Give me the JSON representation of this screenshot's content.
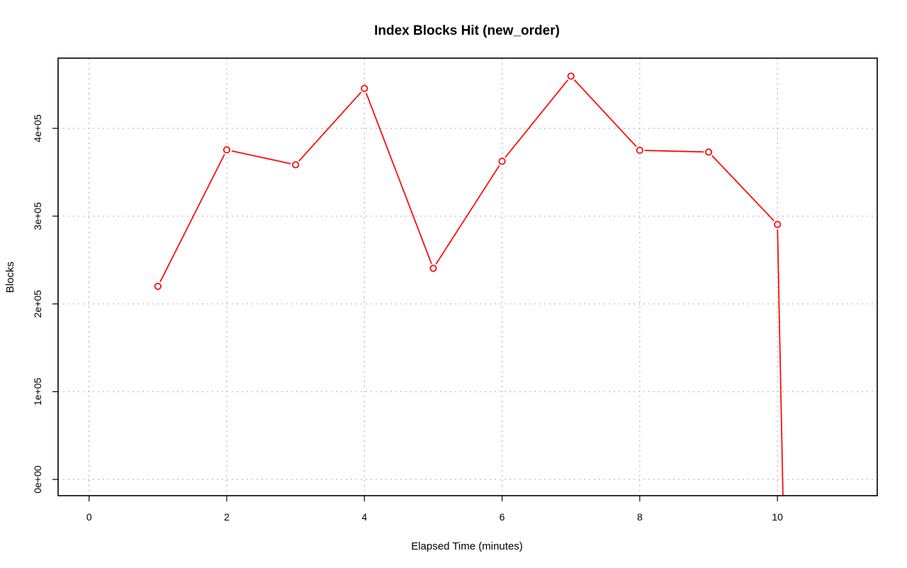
{
  "chart_data": {
    "type": "line",
    "title": "Index Blocks Hit (new_order)",
    "xlabel": "Elapsed Time (minutes)",
    "ylabel": "Blocks",
    "xlim": [
      -0.45,
      11.45
    ],
    "ylim": [
      -18500,
      480000
    ],
    "grid": true,
    "x_ticks": [
      0,
      2,
      4,
      6,
      8,
      10
    ],
    "x_tick_labels": [
      "0",
      "2",
      "4",
      "6",
      "8",
      "10"
    ],
    "y_ticks": [
      0,
      100000,
      200000,
      300000,
      400000
    ],
    "y_tick_labels": [
      "0e+00",
      "1e+05",
      "2e+05",
      "3e+05",
      "4e+05"
    ],
    "series": [
      {
        "color": "#ff0000",
        "marker": "open-circle",
        "x": [
          1,
          2,
          3,
          4,
          5,
          6,
          7,
          8,
          9,
          10
        ],
        "values": [
          220000,
          375500,
          358500,
          445500,
          240500,
          362500,
          459500,
          375000,
          373000,
          290500
        ],
        "tail_to": [
          10.08,
          -18500
        ]
      }
    ]
  }
}
